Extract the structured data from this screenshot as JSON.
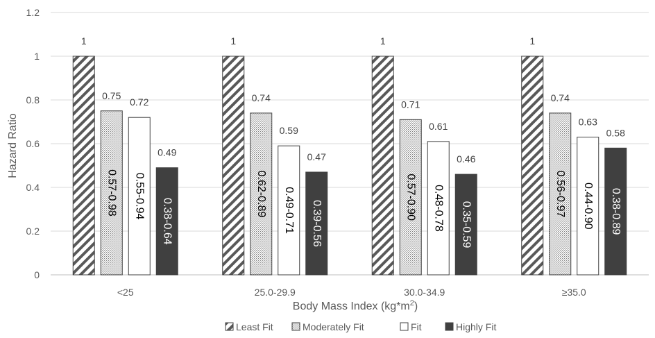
{
  "chart_data": {
    "type": "bar",
    "xlabel": "Body Mass Index (kg*m",
    "xlabel_sup": "2",
    "xlabel_end": ")",
    "ylabel": "Hazard Ratio",
    "ylim": [
      0,
      1.2
    ],
    "yticks": [
      "0",
      "0.2",
      "0.4",
      "0.6",
      "0.8",
      "1",
      "1.2"
    ],
    "grid": true,
    "legend_position": "bottom",
    "categories": [
      "<25",
      "25.0-29.9",
      "30.0-34.9",
      "≥35.0"
    ],
    "series": [
      {
        "name": "Least Fit",
        "pattern": "diagonal",
        "values": [
          1,
          1,
          1,
          1
        ],
        "labels": [
          "1",
          "1",
          "1",
          "1"
        ],
        "ci": [
          "",
          "",
          "",
          ""
        ]
      },
      {
        "name": "Moderately Fit",
        "pattern": "dotted",
        "values": [
          0.75,
          0.74,
          0.71,
          0.74
        ],
        "labels": [
          "0.75",
          "0.74",
          "0.71",
          "0.74"
        ],
        "ci": [
          "0.57-0.98",
          "0.62-0.89",
          "0.57-0.90",
          "0.56-0.97"
        ]
      },
      {
        "name": "Fit",
        "pattern": "white",
        "values": [
          0.72,
          0.59,
          0.61,
          0.63
        ],
        "labels": [
          "0.72",
          "0.59",
          "0.61",
          "0.63"
        ],
        "ci": [
          "0.55-0.94",
          "0.49-0.71",
          "0.48-0.78",
          "0.44-0.90"
        ]
      },
      {
        "name": "Highly Fit",
        "pattern": "dark",
        "values": [
          0.49,
          0.47,
          0.46,
          0.58
        ],
        "labels": [
          "0.49",
          "0.47",
          "0.46",
          "0.58"
        ],
        "ci": [
          "0.38-0.64",
          "0.39-0.56",
          "0.35-0.59",
          "0.38-0.89"
        ]
      }
    ],
    "colors": {
      "grid": "#d9d9d9",
      "bar_border": "#404040",
      "dark_fill": "#404040",
      "text": "#595959"
    }
  }
}
